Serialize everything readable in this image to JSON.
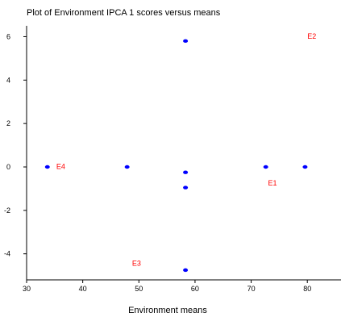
{
  "chart_data": {
    "type": "scatter",
    "title": "Plot of Environment IPCA 1 scores versus means",
    "xlabel": "Environment means",
    "ylabel": "",
    "xlim": [
      30,
      86
    ],
    "ylim": [
      -5.2,
      6.5
    ],
    "xticks": [
      30,
      40,
      50,
      60,
      70,
      80
    ],
    "yticks": [
      -4,
      -2,
      0,
      2,
      4,
      6
    ],
    "grid": false,
    "point_color": "#0000ff",
    "label_color": "#ff0000",
    "points": [
      {
        "x": 33.7,
        "y": 0.0
      },
      {
        "x": 47.9,
        "y": 0.0
      },
      {
        "x": 58.3,
        "y": 5.8
      },
      {
        "x": 58.3,
        "y": -0.25
      },
      {
        "x": 58.3,
        "y": -0.95
      },
      {
        "x": 58.3,
        "y": -4.75
      },
      {
        "x": 72.6,
        "y": 0.0
      },
      {
        "x": 79.6,
        "y": 0.0
      }
    ],
    "annotations": [
      {
        "text": "E2",
        "x": 80.0,
        "y": 5.9
      },
      {
        "text": "E4",
        "x": 35.3,
        "y": -0.1
      },
      {
        "text": "E1",
        "x": 73.0,
        "y": -0.85
      },
      {
        "text": "E3",
        "x": 48.8,
        "y": -4.55
      }
    ]
  }
}
